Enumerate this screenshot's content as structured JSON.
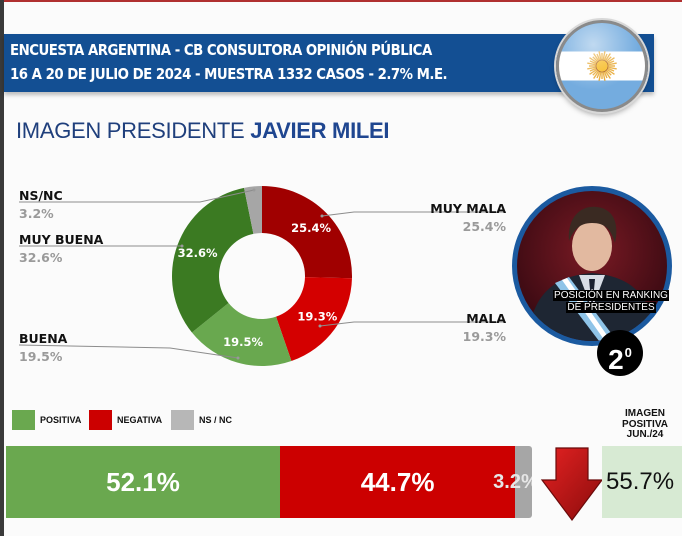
{
  "header": {
    "line1": "ENCUESTA ARGENTINA - CB CONSULTORA OPINIÓN PÚBLICA",
    "line2": "16 A 20 DE JULIO DE 2024 - MUESTRA 1332 CASOS - 2.7% M.E.",
    "flag_icon": "argentina-flag-icon"
  },
  "title": {
    "prefix": "IMAGEN PRESIDENTE",
    "name": "JAVIER MILEI"
  },
  "colors": {
    "muy_mala": "#a00000",
    "mala": "#d40000",
    "buena": "#69a84f",
    "muy_buena": "#3b7a22",
    "nsnc": "#a6a6a6",
    "banner": "#134f93"
  },
  "portrait": {
    "caption_line1": "POSICIÓN EN RANKING",
    "caption_line2": "DE PRESIDENTES",
    "rank": "2",
    "rank_suffix": "0"
  },
  "legend": [
    {
      "label": "POSITIVA",
      "color": "#6aa84f"
    },
    {
      "label": "NEGATIVA",
      "color": "#cc0000"
    },
    {
      "label": "NS / NC",
      "color": "#b7b7b7"
    }
  ],
  "comparison": {
    "heading_line1": "IMAGEN",
    "heading_line2": "POSITIVA",
    "heading_line3": "JUN./24",
    "value": "55.7%",
    "trend": "down"
  },
  "chart_data": [
    {
      "type": "pie",
      "subtype": "donut",
      "title": "IMAGEN PRESIDENTE JAVIER MILEI",
      "categories": [
        "MUY MALA",
        "MALA",
        "BUENA",
        "MUY BUENA",
        "NS/NC"
      ],
      "values": [
        25.4,
        19.3,
        19.5,
        32.6,
        3.2
      ],
      "labels": [
        "25.4%",
        "19.3%",
        "19.5%",
        "32.6%",
        "3.2%"
      ],
      "colors": [
        "#a00000",
        "#d40000",
        "#69a84f",
        "#3b7a22",
        "#a6a6a6"
      ],
      "start": "12 o'clock",
      "direction": "clockwise"
    },
    {
      "type": "bar",
      "subtype": "stacked-horizontal",
      "categories": [
        "POSITIVA",
        "NEGATIVA",
        "NS / NC"
      ],
      "values": [
        52.1,
        44.7,
        3.2
      ],
      "labels": [
        "52.1%",
        "44.7%",
        "3.2%"
      ],
      "colors": [
        "#6aa84f",
        "#cc0000",
        "#a6a6a6"
      ],
      "legend": "top-left"
    }
  ]
}
